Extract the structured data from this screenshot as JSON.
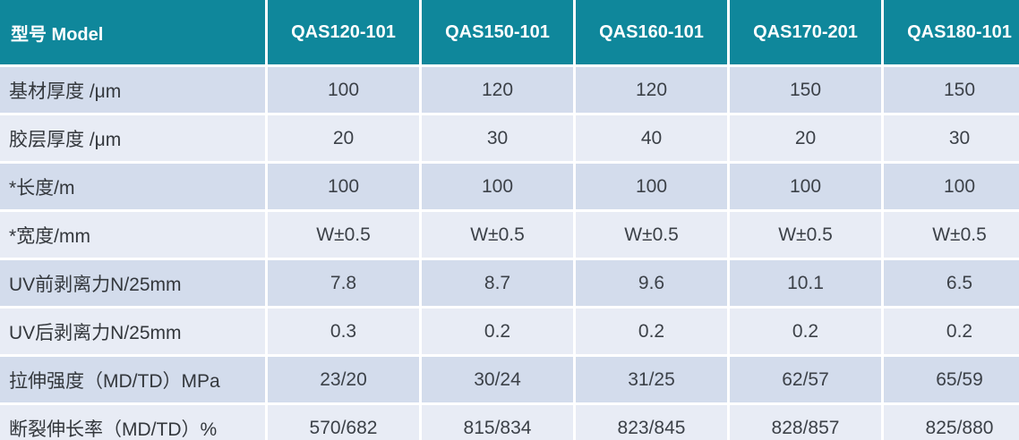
{
  "table": {
    "title": "QAS series product specification table",
    "header": [
      "型号 Model",
      "QAS120-101",
      "QAS150-101",
      "QAS160-101",
      "QAS170-201",
      "QAS180-101"
    ],
    "rows": [
      {
        "label": "基材厚度 /μm",
        "values": [
          "100",
          "120",
          "120",
          "150",
          "150"
        ]
      },
      {
        "label": "胶层厚度 /μm",
        "values": [
          "20",
          "30",
          "40",
          "20",
          "30"
        ]
      },
      {
        "label": "*长度/m",
        "values": [
          "100",
          "100",
          "100",
          "100",
          "100"
        ]
      },
      {
        "label": "*宽度/mm",
        "values": [
          "W±0.5",
          "W±0.5",
          "W±0.5",
          "W±0.5",
          "W±0.5"
        ]
      },
      {
        "label": "UV前剥离力N/25mm",
        "values": [
          "7.8",
          "8.7",
          "9.6",
          "10.1",
          "6.5"
        ]
      },
      {
        "label": "UV后剥离力N/25mm",
        "values": [
          "0.3",
          "0.2",
          "0.2",
          "0.2",
          "0.2"
        ]
      },
      {
        "label": "拉伸强度（MD/TD）MPa",
        "values": [
          "23/20",
          "30/24",
          "31/25",
          "62/57",
          "65/59"
        ]
      },
      {
        "label": "断裂伸长率（MD/TD）%",
        "values": [
          "570/682",
          "815/834",
          "823/845",
          "828/857",
          "825/880"
        ]
      }
    ],
    "colors": {
      "header_bg": "#0f879b",
      "header_text": "#ffffff",
      "row_odd_bg": "#d3dcec",
      "row_even_bg": "#e8ecf5",
      "body_text": "#3c4148",
      "grid_gap": "#ffffff"
    }
  }
}
